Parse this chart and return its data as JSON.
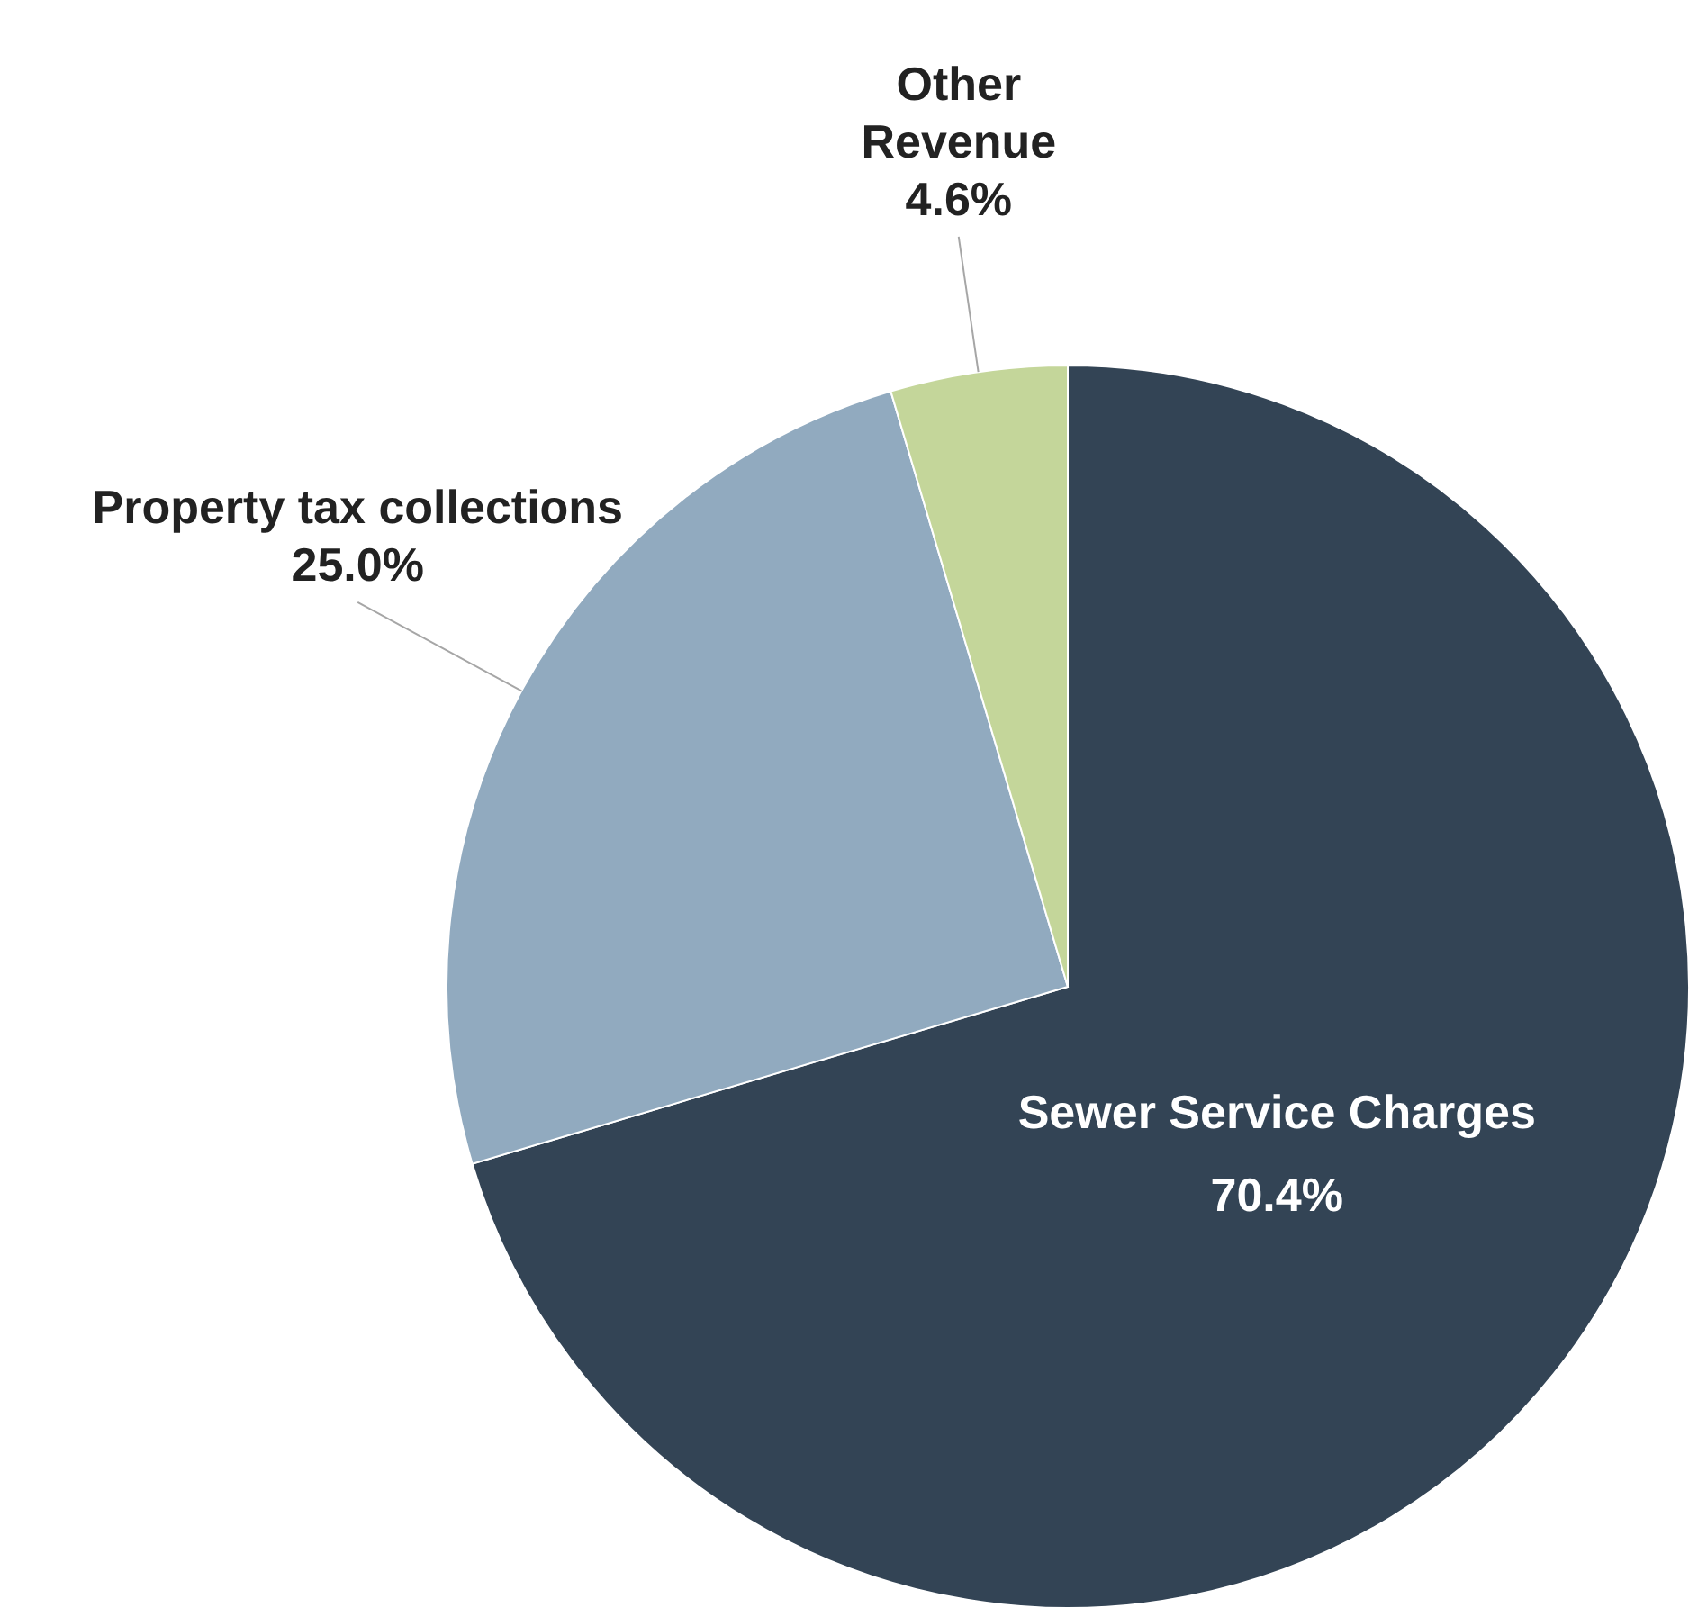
{
  "chart_data": {
    "type": "pie",
    "categories": [
      "Sewer Service Charges",
      "Property tax collections",
      "Other Revenue"
    ],
    "values": [
      70.4,
      25.0,
      4.6
    ],
    "value_labels": [
      "70.4%",
      "25.0%",
      "4.6%"
    ],
    "colors": [
      "#334455",
      "#91aabf",
      "#c4d69a"
    ]
  }
}
